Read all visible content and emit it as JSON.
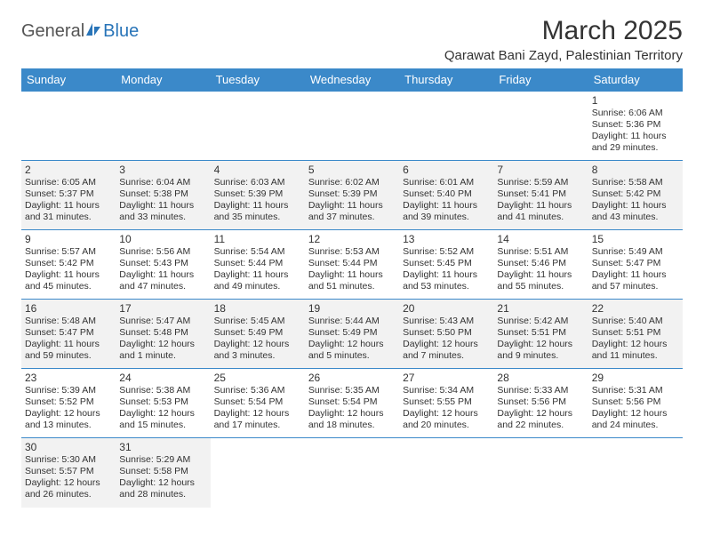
{
  "logo": {
    "part1": "General",
    "part2": "Blue"
  },
  "title": "March 2025",
  "location": "Qarawat Bani Zayd, Palestinian Territory",
  "colors": {
    "header_bg": "#3b89c9",
    "header_text": "#ffffff",
    "row_shade": "#f2f2f2",
    "border": "#3b89c9",
    "logo_blue": "#2874b8",
    "text": "#333333"
  },
  "typography": {
    "title_fontsize": 30,
    "location_fontsize": 15,
    "header_fontsize": 13,
    "daynum_fontsize": 12,
    "detail_fontsize": 10.5
  },
  "day_headers": [
    "Sunday",
    "Monday",
    "Tuesday",
    "Wednesday",
    "Thursday",
    "Friday",
    "Saturday"
  ],
  "weeks": [
    {
      "shaded": false,
      "days": [
        null,
        null,
        null,
        null,
        null,
        null,
        {
          "n": "1",
          "sunrise": "6:06 AM",
          "sunset": "5:36 PM",
          "daylight": "11 hours and 29 minutes."
        }
      ]
    },
    {
      "shaded": true,
      "days": [
        {
          "n": "2",
          "sunrise": "6:05 AM",
          "sunset": "5:37 PM",
          "daylight": "11 hours and 31 minutes."
        },
        {
          "n": "3",
          "sunrise": "6:04 AM",
          "sunset": "5:38 PM",
          "daylight": "11 hours and 33 minutes."
        },
        {
          "n": "4",
          "sunrise": "6:03 AM",
          "sunset": "5:39 PM",
          "daylight": "11 hours and 35 minutes."
        },
        {
          "n": "5",
          "sunrise": "6:02 AM",
          "sunset": "5:39 PM",
          "daylight": "11 hours and 37 minutes."
        },
        {
          "n": "6",
          "sunrise": "6:01 AM",
          "sunset": "5:40 PM",
          "daylight": "11 hours and 39 minutes."
        },
        {
          "n": "7",
          "sunrise": "5:59 AM",
          "sunset": "5:41 PM",
          "daylight": "11 hours and 41 minutes."
        },
        {
          "n": "8",
          "sunrise": "5:58 AM",
          "sunset": "5:42 PM",
          "daylight": "11 hours and 43 minutes."
        }
      ]
    },
    {
      "shaded": false,
      "days": [
        {
          "n": "9",
          "sunrise": "5:57 AM",
          "sunset": "5:42 PM",
          "daylight": "11 hours and 45 minutes."
        },
        {
          "n": "10",
          "sunrise": "5:56 AM",
          "sunset": "5:43 PM",
          "daylight": "11 hours and 47 minutes."
        },
        {
          "n": "11",
          "sunrise": "5:54 AM",
          "sunset": "5:44 PM",
          "daylight": "11 hours and 49 minutes."
        },
        {
          "n": "12",
          "sunrise": "5:53 AM",
          "sunset": "5:44 PM",
          "daylight": "11 hours and 51 minutes."
        },
        {
          "n": "13",
          "sunrise": "5:52 AM",
          "sunset": "5:45 PM",
          "daylight": "11 hours and 53 minutes."
        },
        {
          "n": "14",
          "sunrise": "5:51 AM",
          "sunset": "5:46 PM",
          "daylight": "11 hours and 55 minutes."
        },
        {
          "n": "15",
          "sunrise": "5:49 AM",
          "sunset": "5:47 PM",
          "daylight": "11 hours and 57 minutes."
        }
      ]
    },
    {
      "shaded": true,
      "days": [
        {
          "n": "16",
          "sunrise": "5:48 AM",
          "sunset": "5:47 PM",
          "daylight": "11 hours and 59 minutes."
        },
        {
          "n": "17",
          "sunrise": "5:47 AM",
          "sunset": "5:48 PM",
          "daylight": "12 hours and 1 minute."
        },
        {
          "n": "18",
          "sunrise": "5:45 AM",
          "sunset": "5:49 PM",
          "daylight": "12 hours and 3 minutes."
        },
        {
          "n": "19",
          "sunrise": "5:44 AM",
          "sunset": "5:49 PM",
          "daylight": "12 hours and 5 minutes."
        },
        {
          "n": "20",
          "sunrise": "5:43 AM",
          "sunset": "5:50 PM",
          "daylight": "12 hours and 7 minutes."
        },
        {
          "n": "21",
          "sunrise": "5:42 AM",
          "sunset": "5:51 PM",
          "daylight": "12 hours and 9 minutes."
        },
        {
          "n": "22",
          "sunrise": "5:40 AM",
          "sunset": "5:51 PM",
          "daylight": "12 hours and 11 minutes."
        }
      ]
    },
    {
      "shaded": false,
      "days": [
        {
          "n": "23",
          "sunrise": "5:39 AM",
          "sunset": "5:52 PM",
          "daylight": "12 hours and 13 minutes."
        },
        {
          "n": "24",
          "sunrise": "5:38 AM",
          "sunset": "5:53 PM",
          "daylight": "12 hours and 15 minutes."
        },
        {
          "n": "25",
          "sunrise": "5:36 AM",
          "sunset": "5:54 PM",
          "daylight": "12 hours and 17 minutes."
        },
        {
          "n": "26",
          "sunrise": "5:35 AM",
          "sunset": "5:54 PM",
          "daylight": "12 hours and 18 minutes."
        },
        {
          "n": "27",
          "sunrise": "5:34 AM",
          "sunset": "5:55 PM",
          "daylight": "12 hours and 20 minutes."
        },
        {
          "n": "28",
          "sunrise": "5:33 AM",
          "sunset": "5:56 PM",
          "daylight": "12 hours and 22 minutes."
        },
        {
          "n": "29",
          "sunrise": "5:31 AM",
          "sunset": "5:56 PM",
          "daylight": "12 hours and 24 minutes."
        }
      ]
    },
    {
      "shaded": true,
      "days": [
        {
          "n": "30",
          "sunrise": "5:30 AM",
          "sunset": "5:57 PM",
          "daylight": "12 hours and 26 minutes."
        },
        {
          "n": "31",
          "sunrise": "5:29 AM",
          "sunset": "5:58 PM",
          "daylight": "12 hours and 28 minutes."
        },
        null,
        null,
        null,
        null,
        null
      ]
    }
  ],
  "labels": {
    "sunrise": "Sunrise:",
    "sunset": "Sunset:",
    "daylight": "Daylight:"
  }
}
